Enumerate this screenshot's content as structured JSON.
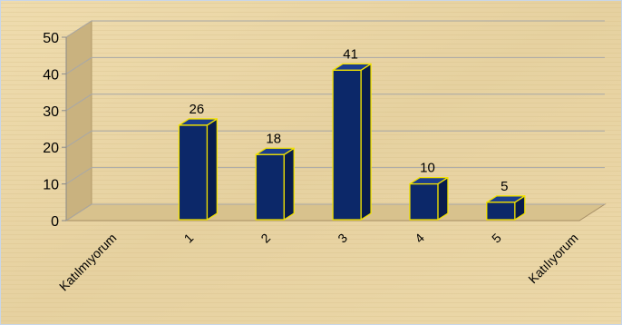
{
  "chart_data": {
    "type": "bar",
    "categories": [
      "Katılmıyorum",
      "1",
      "2",
      "3",
      "4",
      "5",
      "Katılıyorum"
    ],
    "values": [
      null,
      26,
      18,
      41,
      10,
      5,
      null
    ],
    "data_labels": [
      "",
      "26",
      "18",
      "41",
      "10",
      "5",
      ""
    ],
    "ylim": [
      0,
      50
    ],
    "yticks": [
      0,
      10,
      20,
      30,
      40,
      50
    ],
    "grid": true,
    "style": "3d-column",
    "legend": "none",
    "colors": {
      "bar_front": "#0c2869",
      "bar_side": "#081c4c",
      "bar_top": "#1a3d8f",
      "bar_outline": "#f2e200",
      "background": "#e9d6a6",
      "grid": "#a8a8a8",
      "text": "#000000"
    }
  }
}
